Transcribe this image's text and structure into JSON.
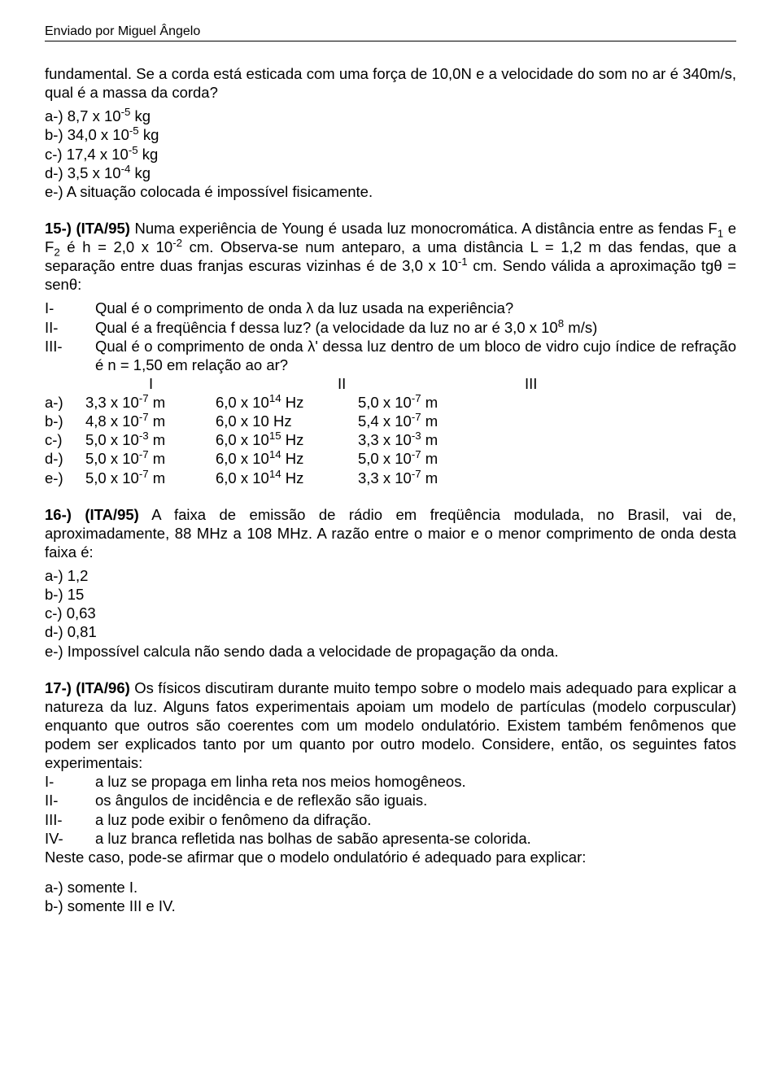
{
  "header": "Enviado por Miguel Ângelo",
  "q14": {
    "lead": "fundamental. Se a corda está esticada com uma força de 10,0N e a velocidade do som no ar é 340m/s, qual é a massa da corda?",
    "opts": {
      "a_pre": "a-) 8,7 x 10",
      "a_sup": "-5",
      "a_post": " kg",
      "b_pre": "b-) 34,0 x 10",
      "b_sup": "-5",
      "b_post": " kg",
      "c_pre": "c-) 17,4 x 10",
      "c_sup": "-5",
      "c_post": " kg",
      "d_pre": "d-) 3,5 x 10",
      "d_sup": "-4",
      "d_post": " kg",
      "e": "e-) A situação colocada é impossível fisicamente."
    }
  },
  "q15": {
    "p1a": "15-) (ITA/95)",
    "p1b": " Numa experiência de Young é usada luz monocromática. A distância entre as fendas F",
    "p1c": " e F",
    "p1d": " é h = 2,0 x 10",
    "p1e": " cm. Observa-se num anteparo, a uma distância L = 1,2 m das fendas, que a separação entre duas franjas escuras vizinhas é de 3,0 x 10",
    "p1f": " cm. Sendo válida a aproximação tgθ = senθ:",
    "r1": {
      "n": "I-",
      "t": "Qual é o comprimento de onda λ da luz usada na experiência?"
    },
    "r2": {
      "n": "II-",
      "t_a": "Qual é a freqüência f dessa luz? (a velocidade da luz no ar é 3,0 x 10",
      "t_sup": "8",
      "t_b": " m/s)"
    },
    "r3": {
      "n": "III-",
      "t": "Qual é o comprimento de onda λ' dessa luz dentro de um bloco de vidro cujo índice de refração é n = 1,50 em relação ao ar?"
    },
    "table": {
      "h1": "I",
      "h2": "II",
      "h3": "III",
      "rows": [
        {
          "c0": "a-) ",
          "c1a": "3,3 x 10",
          "c1s": "-7",
          "c1b": " m",
          "c2a": "6,0 x 10",
          "c2s": "14",
          "c2b": " Hz",
          "c3a": "5,0 x 10",
          "c3s": "-7",
          "c3b": " m"
        },
        {
          "c0": "b-) ",
          "c1a": "4,8 x 10",
          "c1s": "-7",
          "c1b": " m",
          "c2a": "6,0 x 10 Hz",
          "c2s": "",
          "c2b": "",
          "c3a": "5,4 x 10",
          "c3s": "-7",
          "c3b": " m"
        },
        {
          "c0": "c-) ",
          "c1a": "5,0 x 10",
          "c1s": "-3",
          "c1b": " m",
          "c2a": "6,0 x 10",
          "c2s": "15",
          "c2b": " Hz",
          "c3a": "3,3 x 10",
          "c3s": "-3",
          "c3b": " m"
        },
        {
          "c0": "d-) ",
          "c1a": "5,0 x 10",
          "c1s": "-7",
          "c1b": " m",
          "c2a": "6,0 x 10",
          "c2s": "14",
          "c2b": " Hz",
          "c3a": "5,0 x 10",
          "c3s": "-7",
          "c3b": " m"
        },
        {
          "c0": "e-) ",
          "c1a": "5,0 x 10",
          "c1s": "-7",
          "c1b": " m",
          "c2a": "6,0 x 10",
          "c2s": "14",
          "c2b": " Hz",
          "c3a": "3,3 x 10",
          "c3s": "-7",
          "c3b": " m"
        }
      ]
    }
  },
  "q16": {
    "bold": "16-) (ITA/95)",
    "text": " A faixa de emissão de rádio em freqüência modulada, no Brasil, vai de, aproximadamente, 88 MHz a 108 MHz. A razão entre o maior e o menor comprimento de onda desta faixa é:",
    "opts": {
      "a": "a-) 1,2",
      "b": "b-) 15",
      "c": "c-) 0,63",
      "d": "d-) 0,81",
      "e": "e-) Impossível calcula não sendo dada a velocidade de propagação da onda."
    }
  },
  "q17": {
    "bold": "17-) (ITA/96)",
    "text": " Os físicos discutiram durante muito tempo sobre o modelo mais adequado para explicar a natureza da luz. Alguns fatos experimentais apoiam um modelo de partículas (modelo corpuscular) enquanto que outros  são coerentes com um modelo ondulatório. Existem também fenômenos que podem ser explicados tanto por um quanto por outro modelo. Considere, então, os seguintes fatos experimentais:",
    "r1": {
      "n": "I-",
      "t": "a luz se propaga em linha reta nos meios homogêneos."
    },
    "r2": {
      "n": "II-",
      "t": " os ângulos de incidência e de reflexão são iguais."
    },
    "r3": {
      "n": "III-",
      "t": "a luz pode exibir o fenômeno da difração."
    },
    "r4": {
      "n": "IV-",
      "t": "a luz branca refletida nas bolhas de sabão apresenta-se colorida."
    },
    "tail": "Neste caso, pode-se afirmar que o modelo ondulatório é adequado para explicar:",
    "opts": {
      "a": "a-) somente I.",
      "b": "b-) somente III e IV."
    }
  }
}
